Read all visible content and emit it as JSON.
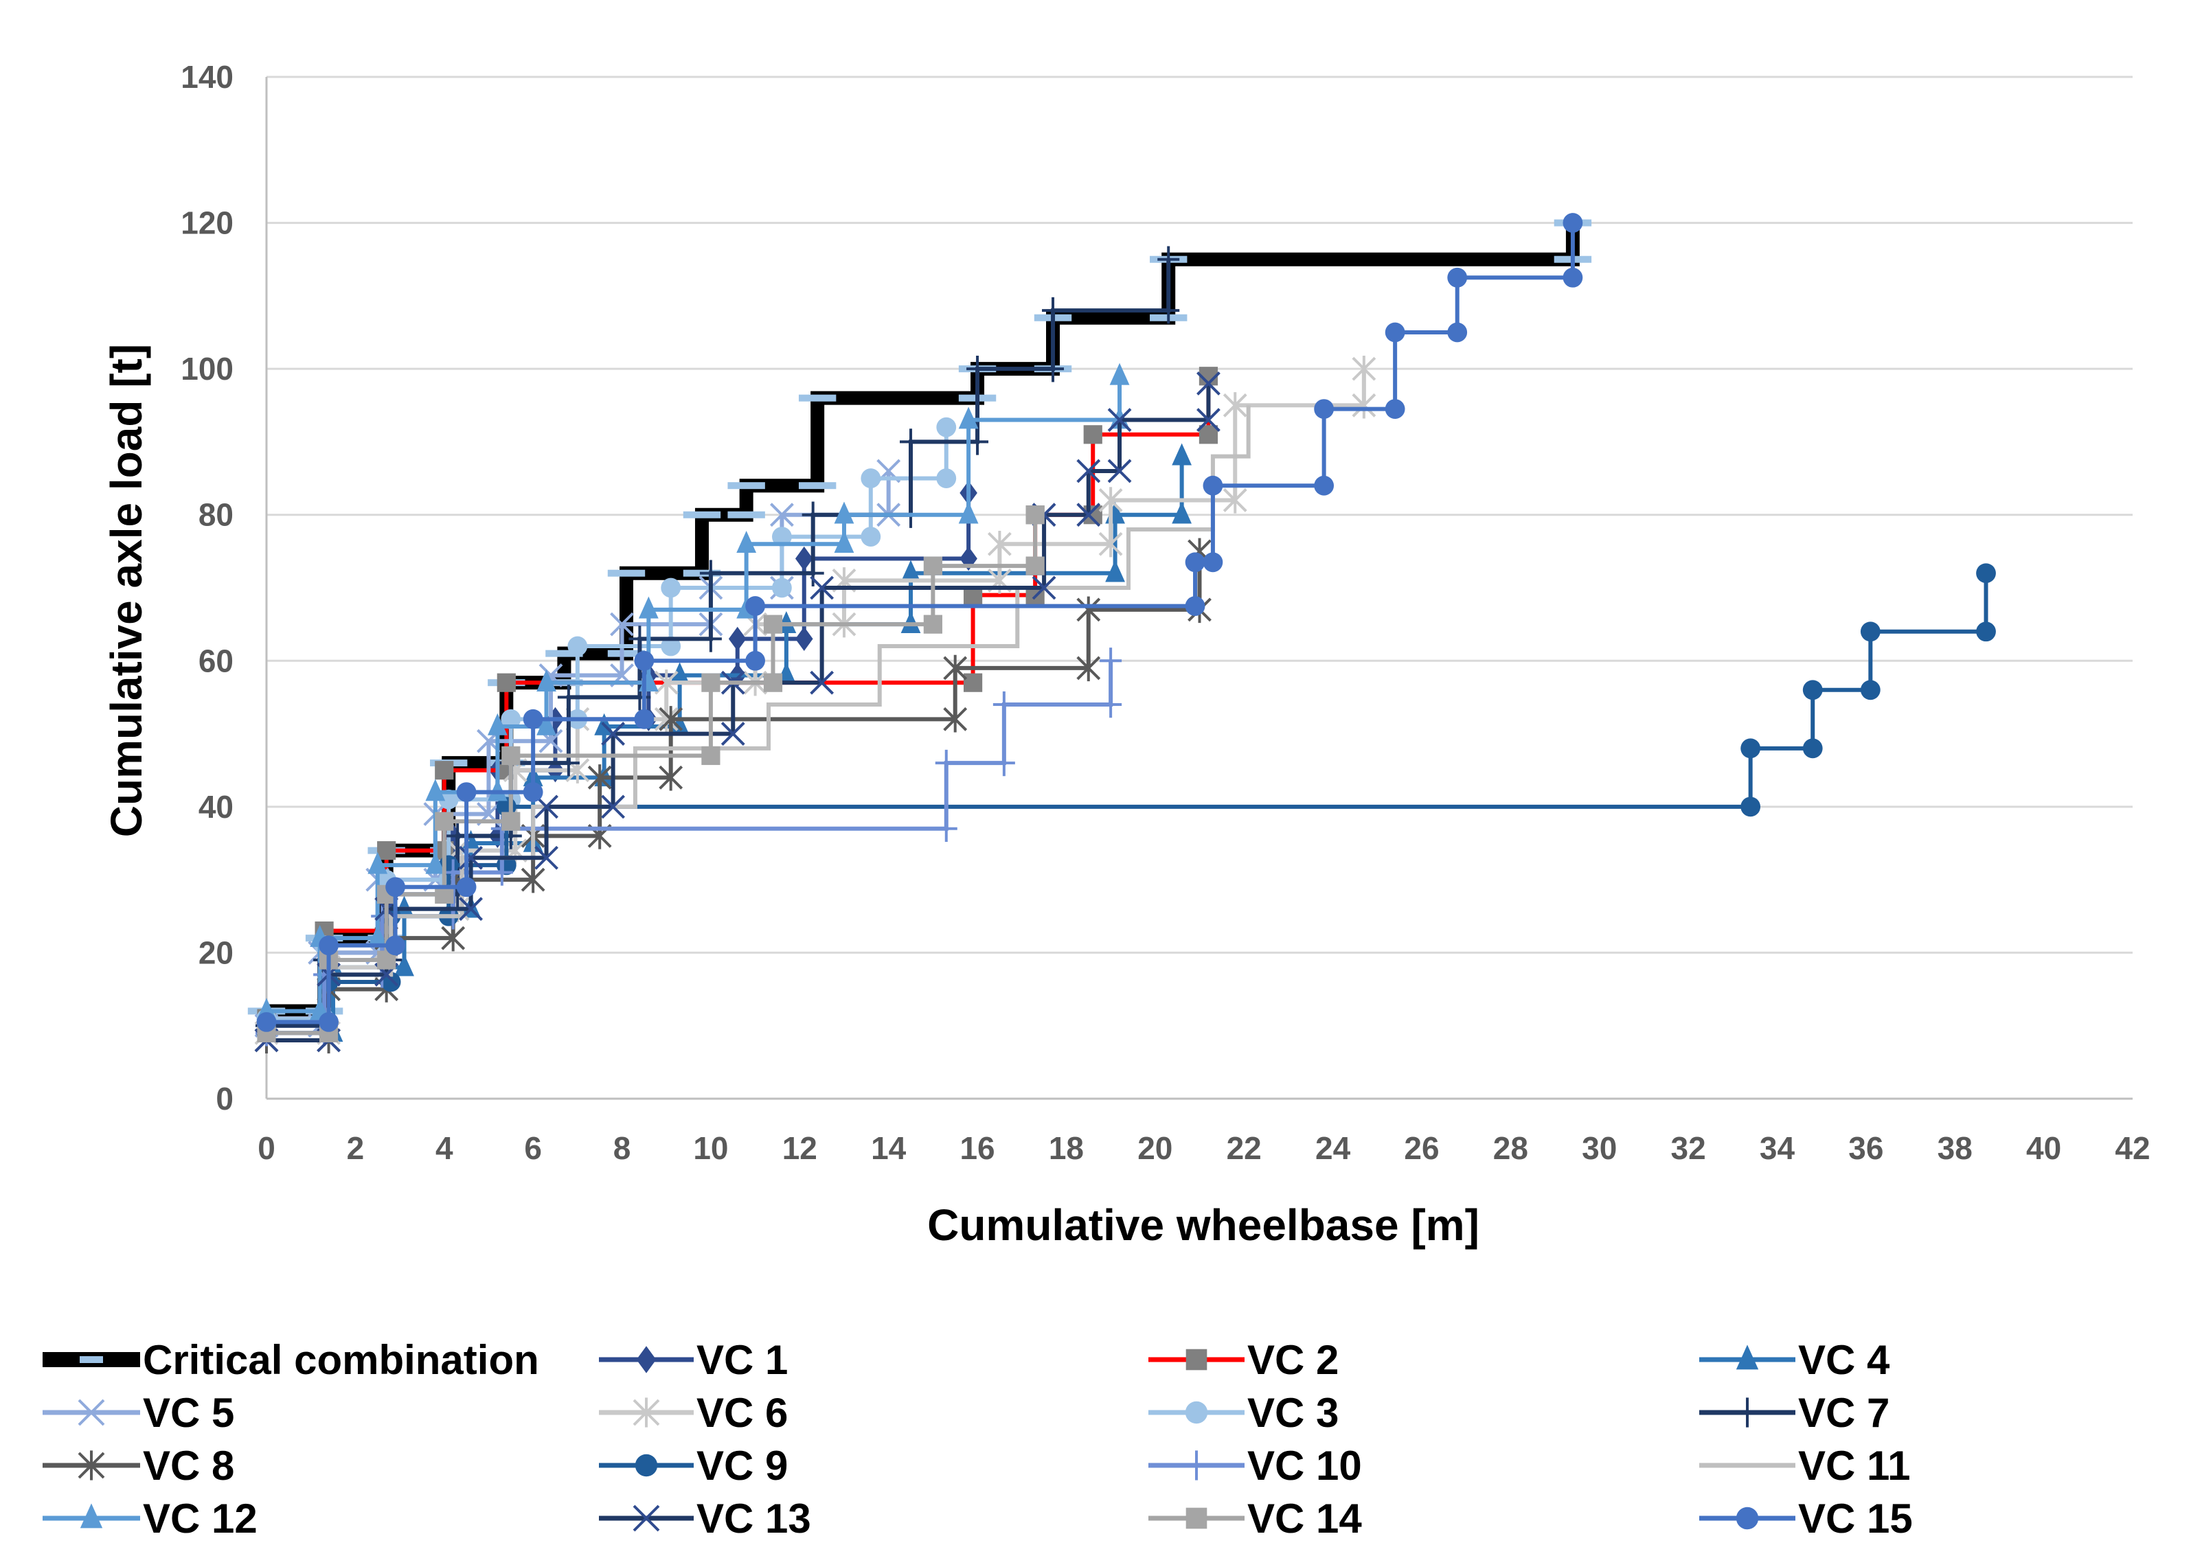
{
  "chart_data": {
    "type": "line",
    "subtype": "step",
    "title": "",
    "xlabel": "Cumulative wheelbase [m]",
    "ylabel": "Cumulative axle load [t]",
    "xlim": [
      0,
      42
    ],
    "ylim": [
      0,
      140
    ],
    "xticks": [
      0,
      2,
      4,
      6,
      8,
      10,
      12,
      14,
      16,
      18,
      20,
      22,
      24,
      26,
      28,
      30,
      32,
      34,
      36,
      38,
      40,
      42
    ],
    "yticks": [
      0,
      20,
      40,
      60,
      80,
      100,
      120,
      140
    ],
    "grid": "horizontal",
    "legend_position": "bottom",
    "point_format": "[cumulative wheelbase m, cumulative axle load t]",
    "series": [
      {
        "name": "Critical combination",
        "color": "#000000",
        "marker": "dash",
        "marker_color": "#9DC3E6",
        "points": [
          [
            0,
            12
          ],
          [
            1.3,
            22
          ],
          [
            2.7,
            34
          ],
          [
            4.1,
            46
          ],
          [
            5.4,
            57
          ],
          [
            6.7,
            61
          ],
          [
            8.1,
            72
          ],
          [
            9.8,
            80
          ],
          [
            10.8,
            84
          ],
          [
            12.4,
            96
          ],
          [
            16,
            100
          ],
          [
            17.7,
            107
          ],
          [
            20.3,
            115
          ],
          [
            29.4,
            120
          ]
        ]
      },
      {
        "name": "VC 1",
        "color": "#2F4B8F",
        "marker": "diamond",
        "marker_color": "#2F4B8F",
        "points": [
          [
            0,
            11
          ],
          [
            1.4,
            20
          ],
          [
            2.8,
            28
          ],
          [
            4.2,
            36
          ],
          [
            5.2,
            45
          ],
          [
            6.5,
            52
          ],
          [
            8.6,
            58
          ],
          [
            10.6,
            63
          ],
          [
            12.1,
            74
          ],
          [
            15.8,
            83
          ]
        ]
      },
      {
        "name": "VC 2",
        "color": "#FF0000",
        "marker": "square",
        "marker_color": "#808080",
        "points": [
          [
            0,
            11
          ],
          [
            1.3,
            23
          ],
          [
            2.7,
            34
          ],
          [
            4,
            45
          ],
          [
            5.4,
            57
          ],
          [
            15.9,
            69
          ],
          [
            17.3,
            80
          ],
          [
            18.6,
            91
          ],
          [
            21.2,
            99
          ]
        ]
      },
      {
        "name": "VC 4",
        "color": "#2E75B6",
        "marker": "triangle",
        "marker_color": "#2E75B6",
        "points": [
          [
            0,
            9
          ],
          [
            1.5,
            18
          ],
          [
            3.1,
            26
          ],
          [
            4.6,
            35
          ],
          [
            6,
            44
          ],
          [
            7.6,
            51
          ],
          [
            9.3,
            58
          ],
          [
            11.7,
            65
          ],
          [
            14.5,
            72
          ],
          [
            19.1,
            80
          ],
          [
            20.6,
            88
          ]
        ]
      },
      {
        "name": "VC 5",
        "color": "#8FAADC",
        "marker": "x",
        "marker_color": "#8FAADC",
        "points": [
          [
            0,
            10
          ],
          [
            1.2,
            20
          ],
          [
            2.5,
            30
          ],
          [
            3.8,
            39
          ],
          [
            5,
            49
          ],
          [
            6.4,
            58
          ],
          [
            8,
            65
          ],
          [
            10,
            70
          ],
          [
            11.6,
            80
          ],
          [
            14,
            86
          ]
        ]
      },
      {
        "name": "VC 6",
        "color": "#C9C9C9",
        "marker": "star",
        "marker_color": "#C9C9C9",
        "points": [
          [
            0,
            9
          ],
          [
            1.4,
            18
          ],
          [
            2.7,
            26
          ],
          [
            4.3,
            34
          ],
          [
            5.6,
            45
          ],
          [
            7,
            52
          ],
          [
            9,
            57
          ],
          [
            11,
            65
          ],
          [
            13,
            71
          ],
          [
            16.5,
            76
          ],
          [
            19,
            82
          ],
          [
            21.8,
            95
          ],
          [
            24.7,
            100
          ]
        ]
      },
      {
        "name": "VC 3",
        "color": "#9DC3E6",
        "marker": "circle",
        "marker_color": "#9DC3E6",
        "points": [
          [
            0,
            11
          ],
          [
            1.3,
            21
          ],
          [
            2.7,
            30
          ],
          [
            4.1,
            41
          ],
          [
            5.5,
            52
          ],
          [
            7,
            62
          ],
          [
            9.1,
            70
          ],
          [
            11.6,
            77
          ],
          [
            13.6,
            85
          ],
          [
            15.3,
            92
          ]
        ]
      },
      {
        "name": "VC 7",
        "color": "#1F3864",
        "marker": "plus",
        "marker_color": "#1F3864",
        "points": [
          [
            0,
            10
          ],
          [
            1.3,
            19
          ],
          [
            2.8,
            28
          ],
          [
            4.3,
            36
          ],
          [
            5.5,
            46
          ],
          [
            6.8,
            55
          ],
          [
            8.4,
            63
          ],
          [
            10,
            72
          ],
          [
            12.3,
            80
          ],
          [
            14.5,
            90
          ],
          [
            16,
            100
          ],
          [
            17.7,
            108
          ],
          [
            20.3,
            115
          ]
        ]
      },
      {
        "name": "VC 8",
        "color": "#595959",
        "marker": "star",
        "marker_color": "#595959",
        "points": [
          [
            0,
            8
          ],
          [
            1.4,
            15
          ],
          [
            2.7,
            22
          ],
          [
            4.2,
            30
          ],
          [
            6,
            36
          ],
          [
            7.5,
            44
          ],
          [
            9.1,
            52
          ],
          [
            15.5,
            59
          ],
          [
            18.5,
            67
          ],
          [
            21,
            75
          ]
        ]
      },
      {
        "name": "VC 9",
        "color": "#1F5C99",
        "marker": "circle",
        "marker_color": "#1F5C99",
        "points": [
          [
            0,
            9
          ],
          [
            1.4,
            16
          ],
          [
            2.8,
            25
          ],
          [
            4.1,
            32
          ],
          [
            5.4,
            40
          ],
          [
            33.4,
            48
          ],
          [
            34.8,
            56
          ],
          [
            36.1,
            64
          ],
          [
            38.7,
            72
          ]
        ]
      },
      {
        "name": "VC 10",
        "color": "#6F8FD6",
        "marker": "plus",
        "marker_color": "#6F8FD6",
        "points": [
          [
            0,
            9
          ],
          [
            1.3,
            17
          ],
          [
            2.6,
            25
          ],
          [
            4.2,
            31
          ],
          [
            5.3,
            37
          ],
          [
            15.3,
            46
          ],
          [
            16.6,
            54
          ],
          [
            19,
            60
          ]
        ]
      },
      {
        "name": "VC 11",
        "color": "#BFBFBF",
        "marker": "none",
        "marker_color": "#BFBFBF",
        "points": [
          [
            0,
            8
          ],
          [
            1.4,
            17
          ],
          [
            2.8,
            25
          ],
          [
            4.4,
            33
          ],
          [
            6,
            40
          ],
          [
            8.3,
            48
          ],
          [
            11.3,
            54
          ],
          [
            13.8,
            62
          ],
          [
            16.9,
            70
          ],
          [
            19.4,
            78
          ],
          [
            21.3,
            88
          ],
          [
            22.1,
            95
          ]
        ]
      },
      {
        "name": "VC 12",
        "color": "#5B9BD5",
        "marker": "triangle",
        "marker_color": "#5B9BD5",
        "points": [
          [
            0,
            12
          ],
          [
            1.2,
            22
          ],
          [
            2.5,
            32
          ],
          [
            3.8,
            42
          ],
          [
            5.2,
            51
          ],
          [
            6.3,
            57
          ],
          [
            8.6,
            67
          ],
          [
            10.8,
            76
          ],
          [
            13,
            80
          ],
          [
            15.8,
            93
          ],
          [
            19.2,
            99
          ]
        ]
      },
      {
        "name": "VC 13",
        "color": "#203864",
        "marker": "x",
        "marker_color": "#2F4B8F",
        "points": [
          [
            0,
            8
          ],
          [
            1.4,
            17
          ],
          [
            2.7,
            26
          ],
          [
            4.6,
            33
          ],
          [
            6.3,
            40
          ],
          [
            7.8,
            50
          ],
          [
            10.5,
            57
          ],
          [
            12.5,
            70
          ],
          [
            17.5,
            80
          ],
          [
            18.5,
            86
          ],
          [
            19.2,
            93
          ],
          [
            21.2,
            98
          ]
        ]
      },
      {
        "name": "VC 14",
        "color": "#A5A5A5",
        "marker": "square",
        "marker_color": "#A5A5A5",
        "points": [
          [
            0,
            9
          ],
          [
            1.4,
            19
          ],
          [
            2.7,
            28
          ],
          [
            4,
            38
          ],
          [
            5.5,
            47
          ],
          [
            10,
            57
          ],
          [
            11.4,
            65
          ],
          [
            15,
            73
          ],
          [
            17.3,
            80
          ]
        ]
      },
      {
        "name": "VC 15",
        "color": "#4472C4",
        "marker": "circle",
        "marker_color": "#4472C4",
        "points": [
          [
            0,
            10.5
          ],
          [
            1.4,
            21
          ],
          [
            2.9,
            29
          ],
          [
            4.5,
            42
          ],
          [
            6,
            52
          ],
          [
            8.5,
            60
          ],
          [
            11,
            67.5
          ],
          [
            20.9,
            73.5
          ],
          [
            21.3,
            84
          ],
          [
            23.8,
            94.5
          ],
          [
            25.4,
            105
          ],
          [
            26.8,
            112.5
          ],
          [
            29.4,
            120
          ]
        ]
      }
    ],
    "legend_order": [
      "Critical combination",
      "VC 1",
      "VC 2",
      "VC 4",
      "VC 5",
      "VC 6",
      "VC 3",
      "VC 7",
      "VC 8",
      "VC 9",
      "VC 10",
      "VC 11",
      "VC 12",
      "VC 13",
      "VC 14",
      "VC 15"
    ]
  }
}
